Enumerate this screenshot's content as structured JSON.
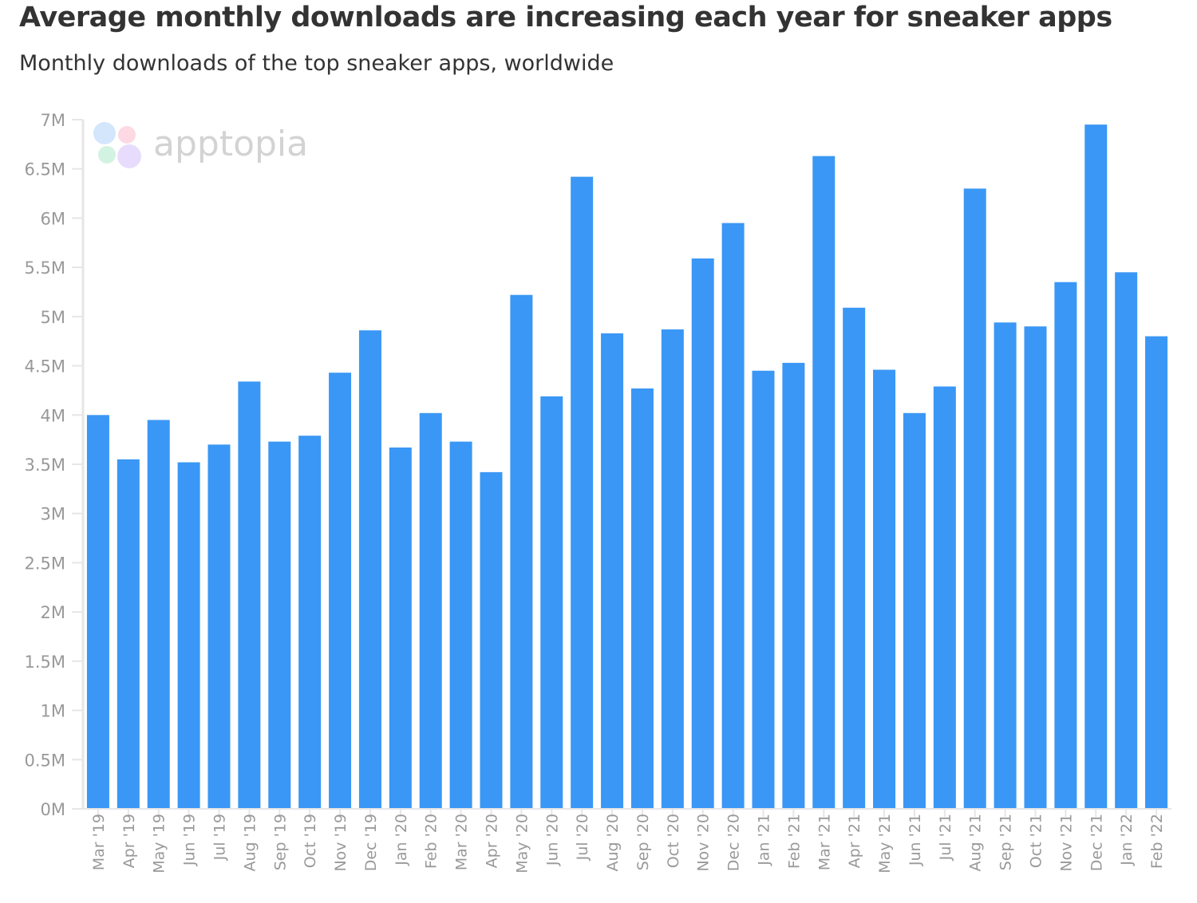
{
  "chart_data": {
    "type": "bar",
    "title": "Average monthly downloads are increasing each year for sneaker apps",
    "subtitle": "Monthly downloads of the top sneaker apps, worldwide",
    "xlabel": "",
    "ylabel": "",
    "ylim": [
      0,
      7000000
    ],
    "yticks": [
      0,
      500000,
      1000000,
      1500000,
      2000000,
      2500000,
      3000000,
      3500000,
      4000000,
      4500000,
      5000000,
      5500000,
      6000000,
      6500000,
      7000000
    ],
    "ytick_labels": [
      "0M",
      "0.5M",
      "1M",
      "1.5M",
      "2M",
      "2.5M",
      "3M",
      "3.5M",
      "4M",
      "4.5M",
      "5M",
      "5.5M",
      "6M",
      "6.5M",
      "7M"
    ],
    "grid": false,
    "bar_color": "#3a97f5",
    "categories": [
      "Mar '19",
      "Apr '19",
      "May '19",
      "Jun '19",
      "Jul '19",
      "Aug '19",
      "Sep '19",
      "Oct '19",
      "Nov '19",
      "Dec '19",
      "Jan '20",
      "Feb '20",
      "Mar '20",
      "Apr '20",
      "May '20",
      "Jun '20",
      "Jul '20",
      "Aug '20",
      "Sep '20",
      "Oct '20",
      "Nov '20",
      "Dec '20",
      "Jan '21",
      "Feb '21",
      "Mar '21",
      "Apr '21",
      "May '21",
      "Jun '21",
      "Jul '21",
      "Aug '21",
      "Sep '21",
      "Oct '21",
      "Nov '21",
      "Dec '21",
      "Jan '22",
      "Feb '22"
    ],
    "values": [
      4000000,
      3550000,
      3950000,
      3520000,
      3700000,
      4340000,
      3730000,
      3790000,
      4430000,
      4860000,
      3670000,
      4020000,
      3730000,
      3420000,
      5220000,
      4190000,
      6420000,
      4830000,
      4270000,
      4870000,
      5590000,
      5950000,
      4450000,
      4530000,
      6630000,
      5090000,
      4460000,
      4020000,
      4290000,
      6300000,
      4940000,
      4900000,
      5350000,
      6950000,
      5450000,
      4800000
    ]
  },
  "watermark": {
    "text": "apptopia",
    "colors": [
      "#d3e6fc",
      "#fdd9e3",
      "#d2f3e2",
      "#e8dcfd"
    ]
  }
}
